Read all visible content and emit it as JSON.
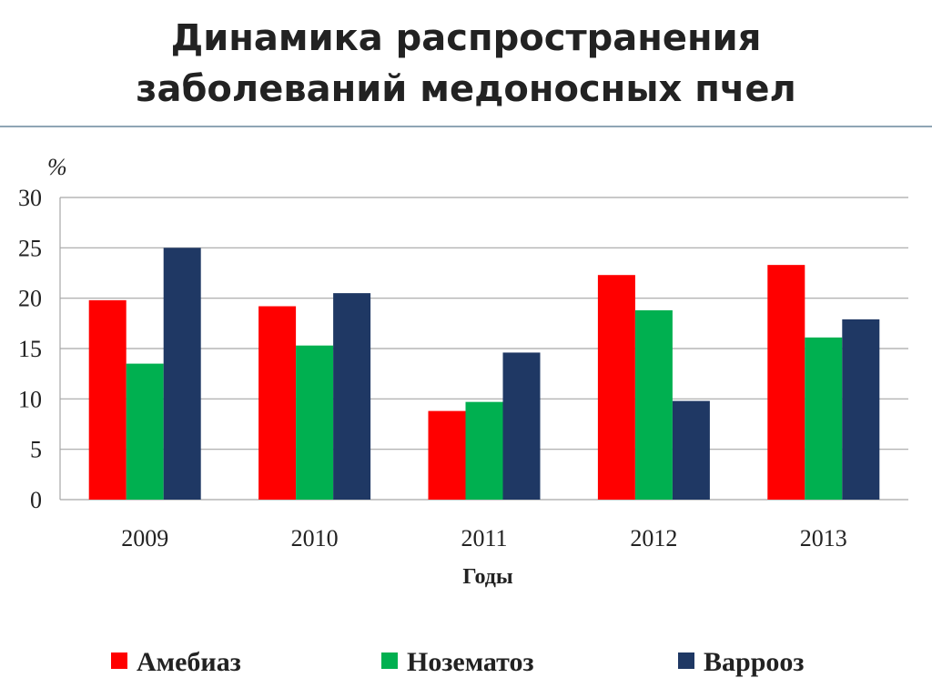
{
  "title": {
    "line1": "Динамика распространения",
    "line2": "заболеваний медоносных пчел"
  },
  "colors": {
    "amebiaz": "#ff0000",
    "nozematoz": "#00b050",
    "varrooz": "#1f3864",
    "grid": "#a6a6a6",
    "rule": "#8fa5b5"
  },
  "chart_data": {
    "type": "bar",
    "ylabel": "%",
    "xlabel": "Годы",
    "ylim": [
      0,
      30
    ],
    "yticks": [
      "0",
      "5",
      "10",
      "15",
      "20",
      "25",
      "30"
    ],
    "grid": true,
    "legend_position": "bottom",
    "categories": [
      "2009",
      "2010",
      "2011",
      "2012",
      "2013"
    ],
    "series": [
      {
        "name": "Амебиаз",
        "values": [
          19.8,
          19.2,
          8.8,
          22.3,
          23.3
        ]
      },
      {
        "name": "Нозематоз",
        "values": [
          13.5,
          15.3,
          9.7,
          18.8,
          16.1
        ]
      },
      {
        "name": "Варрооз",
        "values": [
          25.0,
          20.5,
          14.6,
          9.8,
          17.9
        ]
      }
    ]
  }
}
